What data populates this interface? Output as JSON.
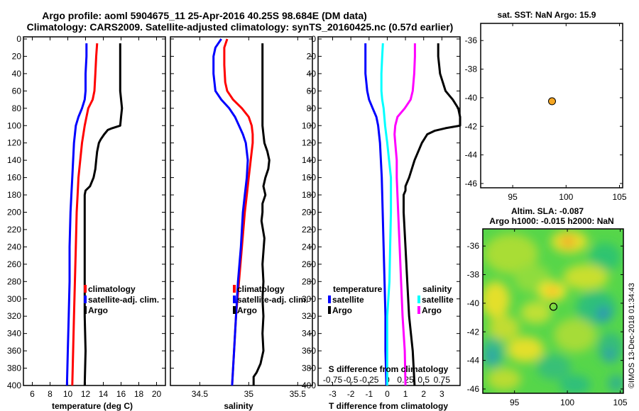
{
  "title": {
    "line1": "Argo profile: aoml 5904675_11 25-Apr-2016 40.25S 98.684E (DM data)",
    "line2": "Climatology: CARS2009. Satellite-adjusted climatology: synTS_20160425.nc (0.57d earlier)"
  },
  "colors": {
    "climatology": "#ff0000",
    "satellite": "#0000ff",
    "argo": "#000000",
    "sal_satellite": "#00ffff",
    "sal_climatology": "#ff00ff",
    "argo_dot": "#f5a623"
  },
  "depth_ticks": [
    "0",
    "20",
    "40",
    "60",
    "80",
    "100",
    "120",
    "140",
    "160",
    "180",
    "200",
    "220",
    "240",
    "260",
    "280",
    "300",
    "320",
    "340",
    "360",
    "380",
    "400"
  ],
  "depth_values": [
    0,
    20,
    40,
    60,
    80,
    100,
    120,
    140,
    160,
    180,
    200,
    220,
    240,
    260,
    280,
    300,
    320,
    340,
    360,
    380,
    400
  ],
  "chart_data": [
    {
      "type": "line",
      "name": "temperature",
      "xlabel": "temperature (deg C)",
      "xlim": [
        5,
        21
      ],
      "ylim": [
        0,
        400
      ],
      "xticks": [
        6,
        8,
        10,
        12,
        14,
        16,
        18,
        20
      ],
      "xtick_labels": [
        "6",
        "8",
        "10",
        "12",
        "14",
        "16",
        "18",
        "20"
      ],
      "legend": [
        "climatology",
        "satellite-adj. clim.",
        "Argo"
      ],
      "series": [
        {
          "name": "climatology",
          "color": "#ff0000",
          "depth": [
            5,
            20,
            40,
            60,
            70,
            80,
            90,
            100,
            120,
            140,
            160,
            180,
            200,
            240,
            280,
            320,
            360,
            400
          ],
          "values": [
            13.3,
            13.2,
            13.1,
            13.0,
            12.8,
            12.3,
            12.1,
            11.9,
            11.6,
            11.4,
            11.2,
            11.1,
            11.0,
            10.9,
            10.8,
            10.7,
            10.6,
            10.5
          ]
        },
        {
          "name": "satellite-adj. clim.",
          "color": "#0000ff",
          "depth": [
            5,
            20,
            40,
            60,
            70,
            80,
            90,
            100,
            120,
            140,
            160,
            180,
            200,
            240,
            280,
            320,
            360,
            400
          ],
          "values": [
            12.1,
            12.1,
            12.0,
            12.0,
            11.9,
            11.6,
            11.2,
            10.9,
            10.7,
            10.6,
            10.5,
            10.4,
            10.3,
            10.2,
            10.2,
            10.1,
            10.0,
            9.9
          ]
        },
        {
          "name": "Argo",
          "color": "#000000",
          "depth": [
            5,
            20,
            40,
            60,
            80,
            90,
            100,
            103,
            105,
            110,
            113,
            116,
            120,
            130,
            140,
            150,
            160,
            170,
            175,
            180,
            190,
            200,
            240,
            280,
            320,
            360,
            400
          ],
          "values": [
            15.9,
            15.9,
            15.9,
            15.9,
            16.1,
            16.0,
            15.9,
            15.0,
            14.5,
            14.1,
            13.9,
            13.7,
            13.5,
            13.3,
            13.2,
            13.1,
            12.9,
            12.5,
            12.0,
            11.9,
            11.9,
            11.9,
            11.9,
            11.9,
            11.9,
            12.0,
            11.9
          ]
        }
      ]
    },
    {
      "type": "line",
      "name": "salinity",
      "xlabel": "salinity",
      "xlim": [
        34.2,
        35.65
      ],
      "ylim": [
        0,
        400
      ],
      "xticks": [
        34.5,
        35,
        35.5
      ],
      "xtick_labels": [
        "34.5",
        "35",
        "35.5"
      ],
      "legend": [
        "climatology",
        "satellite-adj. clim.",
        "Argo"
      ],
      "series": [
        {
          "name": "climatology",
          "color": "#ff0000",
          "depth": [
            0,
            10,
            30,
            50,
            60,
            70,
            80,
            90,
            100,
            110,
            120,
            140,
            160,
            180,
            200,
            240,
            280,
            320,
            360,
            400
          ],
          "values": [
            34.78,
            34.75,
            34.75,
            34.76,
            34.78,
            34.84,
            34.93,
            35.0,
            35.03,
            35.04,
            35.04,
            35.02,
            35.0,
            34.98,
            34.96,
            34.93,
            34.9,
            34.87,
            34.85,
            34.83
          ]
        },
        {
          "name": "satellite-adj. clim.",
          "color": "#0000ff",
          "depth": [
            0,
            10,
            20,
            40,
            60,
            70,
            80,
            90,
            100,
            110,
            120,
            140,
            160,
            180,
            200,
            240,
            280,
            320,
            360,
            400
          ],
          "values": [
            34.72,
            34.66,
            34.64,
            34.64,
            34.66,
            34.72,
            34.8,
            34.86,
            34.9,
            34.94,
            34.97,
            34.99,
            34.98,
            34.96,
            34.94,
            34.92,
            34.89,
            34.87,
            34.85,
            34.83
          ]
        },
        {
          "name": "Argo",
          "color": "#000000",
          "depth": [
            5,
            20,
            40,
            60,
            80,
            100,
            110,
            120,
            130,
            140,
            150,
            160,
            170,
            180,
            190,
            200,
            210,
            230,
            260,
            280,
            300,
            320,
            340,
            360,
            375,
            385,
            390,
            400
          ],
          "values": [
            35.14,
            35.14,
            35.14,
            35.14,
            35.14,
            35.14,
            35.15,
            35.16,
            35.19,
            35.21,
            35.2,
            35.17,
            35.15,
            35.17,
            35.14,
            35.14,
            35.13,
            35.16,
            35.14,
            35.15,
            35.14,
            35.15,
            35.14,
            35.15,
            35.12,
            35.08,
            35.05,
            35.05
          ]
        }
      ]
    },
    {
      "type": "line",
      "name": "difference from climatology",
      "xlabel": "T difference from climatology",
      "xlabel2": "S difference from climatology",
      "xlim": [
        -3.8,
        4.0
      ],
      "s_xlim": [
        -0.95,
        1.0
      ],
      "ylim": [
        0,
        400
      ],
      "xticks": [
        -3,
        -2,
        -1,
        0,
        1,
        2,
        3
      ],
      "xtick_labels": [
        "-3",
        "-2",
        "-1",
        "0",
        "1",
        "2",
        "3"
      ],
      "s_ticks": [
        -0.75,
        -0.5,
        -0.25,
        0,
        0.25,
        0.5,
        0.75
      ],
      "s_tick_labels": [
        "-0.75",
        "-0.5",
        "-0.25",
        "0",
        "0.25",
        "0.5",
        "0.75"
      ],
      "legend_temperature": {
        "title": "temperature",
        "items": [
          "satellite",
          "Argo"
        ]
      },
      "legend_salinity": {
        "title": "salinity",
        "items": [
          "satellite",
          "Argo"
        ]
      },
      "series": [
        {
          "name": "temperature satellite",
          "color": "#0000ff",
          "depth": [
            5,
            20,
            40,
            60,
            70,
            80,
            90,
            100,
            120,
            160,
            200,
            240,
            280,
            320,
            360,
            400
          ],
          "values": [
            -1.2,
            -1.2,
            -1.2,
            -1.1,
            -1.0,
            -0.8,
            -0.6,
            -0.5,
            -0.4,
            -0.3,
            -0.25,
            -0.2,
            -0.15,
            -0.1,
            -0.1,
            -0.05
          ]
        },
        {
          "name": "temperature Argo",
          "color": "#000000",
          "depth": [
            5,
            20,
            40,
            60,
            70,
            80,
            90,
            100,
            103,
            106,
            110,
            120,
            140,
            160,
            170,
            175,
            180,
            200,
            240,
            280,
            320,
            360,
            400
          ],
          "values": [
            2.8,
            2.8,
            2.9,
            3.2,
            3.6,
            3.9,
            4.0,
            4.0,
            3.2,
            2.6,
            2.2,
            1.9,
            1.5,
            1.2,
            1.0,
            1.0,
            0.9,
            0.9,
            1.0,
            1.1,
            1.2,
            1.4,
            1.5
          ]
        },
        {
          "name": "salinity satellite",
          "color": "#00ffff",
          "depth": [
            5,
            20,
            40,
            60,
            70,
            80,
            100,
            120,
            160,
            200,
            240,
            280,
            320,
            360,
            400
          ],
          "values": [
            -0.06,
            -0.07,
            -0.08,
            -0.08,
            -0.07,
            -0.05,
            -0.03,
            0.0,
            0.05,
            0.05,
            0.04,
            0.03,
            0.0,
            0.0,
            0.0
          ]
        },
        {
          "name": "salinity Argo",
          "color": "#ff00ff",
          "depth": [
            5,
            20,
            40,
            60,
            70,
            80,
            90,
            100,
            110,
            120,
            140,
            160,
            180,
            200,
            240,
            280,
            320,
            360,
            400
          ],
          "values": [
            0.38,
            0.38,
            0.37,
            0.35,
            0.32,
            0.24,
            0.14,
            0.11,
            0.1,
            0.11,
            0.13,
            0.13,
            0.14,
            0.15,
            0.17,
            0.19,
            0.21,
            0.24,
            0.25
          ]
        }
      ]
    },
    {
      "type": "scatter",
      "name": "sst map",
      "title": "sat. SST: NaN Argo: 15.9",
      "xlim": [
        92,
        105.3
      ],
      "ylim": [
        -46.3,
        -34.8
      ],
      "xticks": [
        95,
        100,
        105
      ],
      "xtick_labels": [
        "95",
        "100",
        "105"
      ],
      "yticks": [
        -36,
        -38,
        -40,
        -42,
        -44,
        -46
      ],
      "ytick_labels": [
        "-36",
        "-38",
        "-40",
        "-42",
        "-44",
        "-46"
      ],
      "points": [
        {
          "x": 98.684,
          "y": -40.25
        }
      ]
    },
    {
      "type": "heatmap",
      "name": "sla map",
      "title": "Altim. SLA: -0.087",
      "subtitle": "Argo h1000: -0.015 h2000: NaN",
      "xlim": [
        92,
        105.3
      ],
      "ylim": [
        -46.3,
        -34.8
      ],
      "xticks": [
        95,
        100,
        105
      ],
      "xtick_labels": [
        "95",
        "100",
        "105"
      ],
      "yticks": [
        -36,
        -38,
        -40,
        -42,
        -44,
        -46
      ],
      "ytick_labels": [
        "-36",
        "-38",
        "-40",
        "-42",
        "-44",
        "-46"
      ],
      "points": [
        {
          "x": 98.684,
          "y": -40.25
        }
      ]
    }
  ],
  "credit": "©IMOS 13-Dec-2018 01:34:43"
}
